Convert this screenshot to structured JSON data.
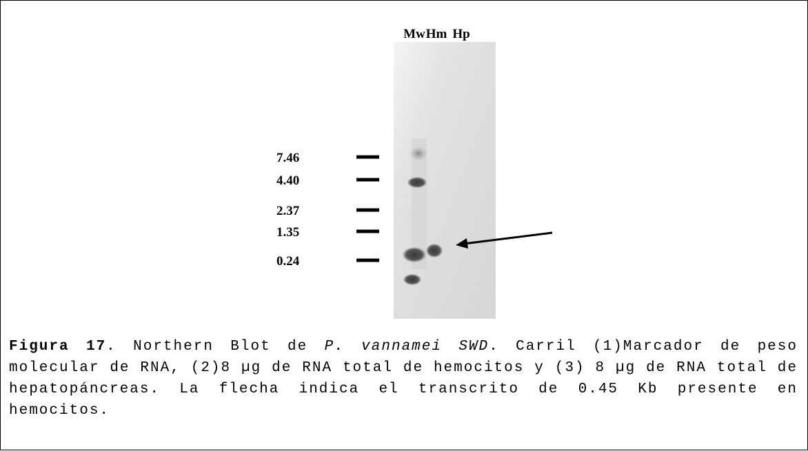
{
  "figure": {
    "lanes": [
      "Mw",
      "Hm",
      "Hp"
    ],
    "markers": [
      "7.46",
      "4.40",
      "2.37",
      "1.35",
      "0.24"
    ]
  },
  "caption": {
    "label": "Figura 17",
    "text_1": ". Northern Blot de ",
    "species": "P. vannamei SWD",
    "text_2": ". Carril (1)Marcador de peso molecular de RNA, (2)8 µg de RNA total de hemocitos y (3) 8 µg de RNA total de hepatopáncreas. La flecha indica el transcrito de 0.45 Kb presente en hemocitos."
  }
}
